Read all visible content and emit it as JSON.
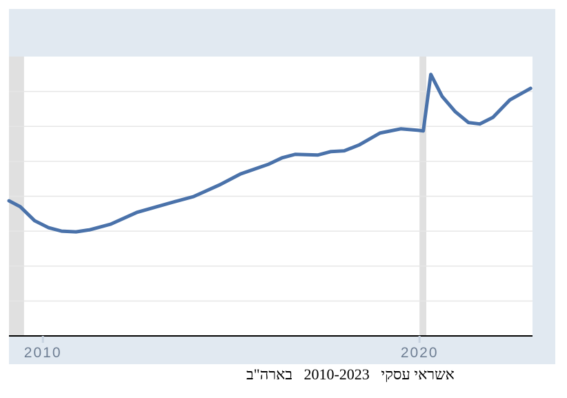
{
  "chart_data": {
    "type": "line",
    "caption": "אשראי עסקי   2010-2023   בארה\"ב",
    "x": [
      2009.1,
      2009.4,
      2009.78,
      2010.15,
      2010.5,
      2010.88,
      2011.25,
      2011.8,
      2012.5,
      2013.45,
      2014.0,
      2014.7,
      2015.25,
      2016.0,
      2016.35,
      2016.7,
      2017.3,
      2017.65,
      2018.0,
      2018.4,
      2018.95,
      2019.5,
      2019.95,
      2020.1,
      2020.3,
      2020.6,
      2020.95,
      2021.3,
      2021.6,
      2021.95,
      2022.4,
      2022.95
    ],
    "values": [
      3.87,
      3.7,
      3.3,
      3.1,
      3.0,
      2.98,
      3.04,
      3.2,
      3.54,
      3.83,
      3.99,
      4.33,
      4.64,
      4.92,
      5.1,
      5.2,
      5.18,
      5.28,
      5.3,
      5.47,
      5.81,
      5.93,
      5.89,
      5.87,
      7.49,
      6.86,
      6.42,
      6.11,
      6.07,
      6.26,
      6.76,
      7.09
    ],
    "color": "#4a72aa",
    "xlim": [
      2009.1,
      2023.0
    ],
    "xticks": [
      2010,
      2020
    ],
    "ylim": [
      0,
      8
    ],
    "yticks": [
      1,
      2,
      3,
      4,
      5,
      6,
      7
    ],
    "grid": true,
    "recessions": [
      [
        2009.1,
        2009.5
      ],
      [
        2020.0,
        2020.18
      ]
    ]
  }
}
